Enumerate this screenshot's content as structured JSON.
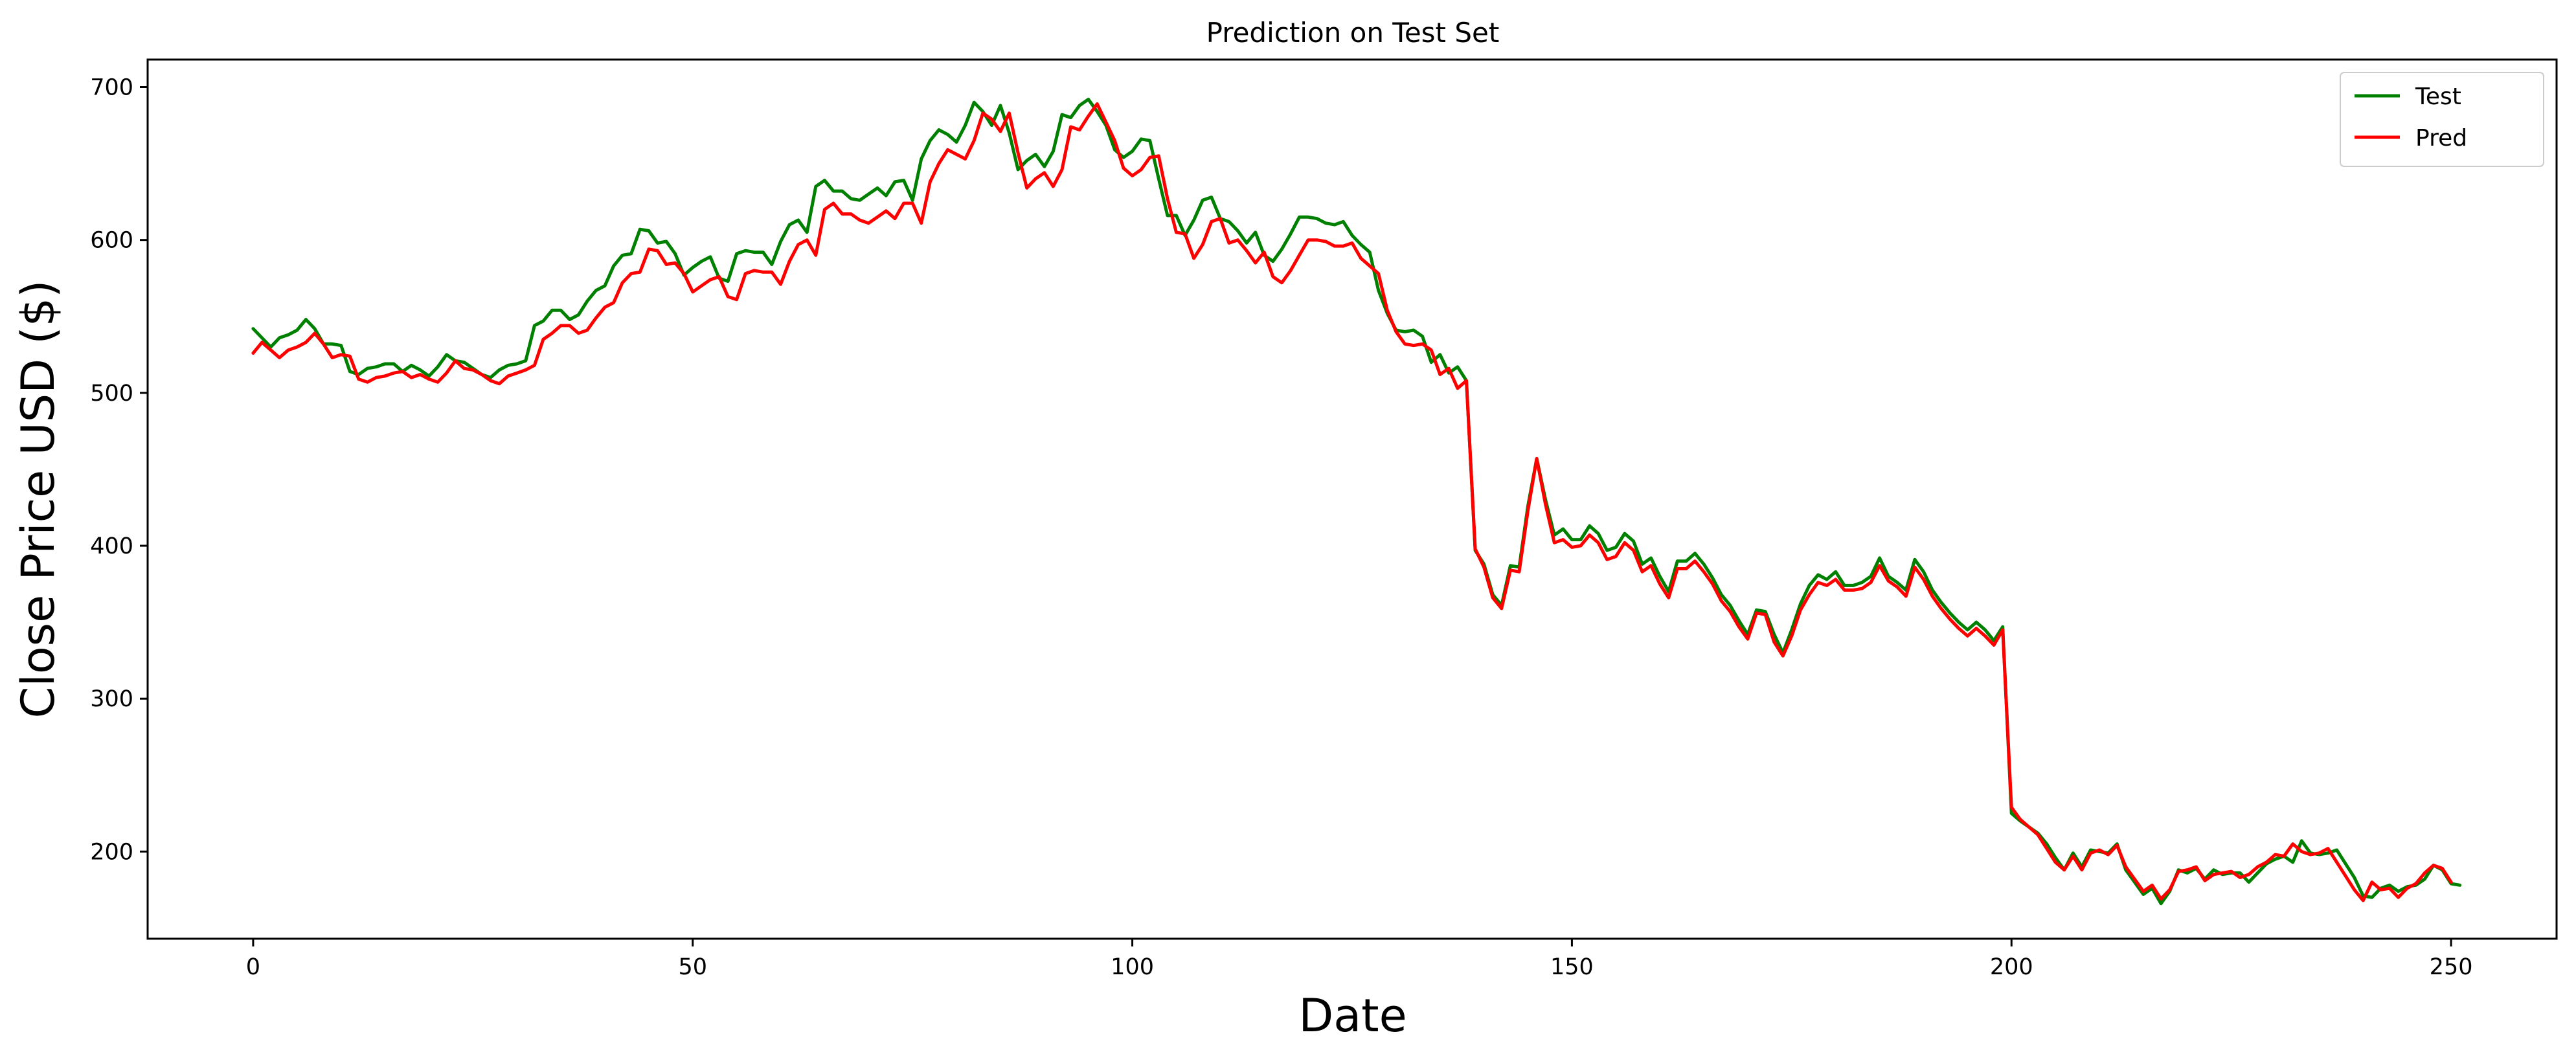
{
  "chart_data": {
    "type": "line",
    "title": "Prediction on Test Set",
    "xlabel": "Date",
    "ylabel": "Close Price USD ($)",
    "xlim": [
      -12,
      262
    ],
    "ylim": [
      143,
      718
    ],
    "xticks": [
      0,
      50,
      100,
      150,
      200,
      250
    ],
    "yticks": [
      200,
      300,
      400,
      500,
      600,
      700
    ],
    "grid": false,
    "legend_position": "top-right",
    "series": [
      {
        "name": "Test",
        "color": "#008000",
        "values": [
          542,
          536,
          530,
          536,
          538,
          541,
          548,
          542,
          532,
          532,
          531,
          514,
          512,
          516,
          517,
          519,
          519,
          514,
          518,
          515,
          511,
          517,
          525,
          521,
          520,
          516,
          512,
          510,
          515,
          518,
          519,
          521,
          544,
          547,
          554,
          554,
          548,
          551,
          560,
          567,
          570,
          583,
          590,
          591,
          607,
          606,
          598,
          599,
          591,
          577,
          582,
          586,
          589,
          575,
          573,
          591,
          593,
          592,
          592,
          584,
          599,
          610,
          613,
          605,
          635,
          639,
          632,
          632,
          627,
          626,
          630,
          634,
          629,
          638,
          639,
          626,
          653,
          665,
          672,
          669,
          664,
          675,
          690,
          684,
          675,
          688,
          670,
          646,
          652,
          656,
          648,
          658,
          682,
          680,
          688,
          692,
          684,
          675,
          659,
          654,
          658,
          666,
          665,
          640,
          616,
          616,
          603,
          613,
          626,
          628,
          614,
          612,
          606,
          598,
          605,
          590,
          586,
          594,
          604,
          615,
          615,
          614,
          611,
          610,
          612,
          603,
          597,
          592,
          567,
          552,
          541,
          540,
          541,
          537,
          520,
          525,
          513,
          517,
          508,
          397,
          388,
          368,
          361,
          387,
          386,
          426,
          457,
          430,
          407,
          411,
          404,
          404,
          413,
          408,
          397,
          399,
          408,
          403,
          388,
          392,
          380,
          370,
          390,
          390,
          395,
          388,
          379,
          368,
          361,
          351,
          342,
          358,
          357,
          342,
          330,
          345,
          362,
          374,
          381,
          378,
          383,
          374,
          374,
          376,
          380,
          392,
          380,
          376,
          371,
          391,
          383,
          371,
          363,
          356,
          350,
          345,
          350,
          345,
          338,
          347,
          225,
          220,
          216,
          212,
          205,
          196,
          188,
          199,
          190,
          201,
          200,
          199,
          205,
          188,
          180,
          172,
          176,
          166,
          174,
          188,
          186,
          189,
          182,
          188,
          185,
          186,
          186,
          180,
          186,
          192,
          195,
          197,
          193,
          207,
          199,
          198,
          199,
          201,
          192,
          183,
          171,
          170,
          176,
          178,
          174,
          177,
          178,
          182,
          191,
          188,
          179,
          178
        ]
      },
      {
        "name": "Pred",
        "color": "#ff0000",
        "values": [
          526,
          533,
          528,
          523,
          528,
          530,
          533,
          539,
          532,
          523,
          525,
          524,
          509,
          507,
          510,
          511,
          513,
          514,
          510,
          512,
          509,
          507,
          513,
          521,
          516,
          515,
          512,
          508,
          506,
          511,
          513,
          515,
          518,
          535,
          539,
          544,
          544,
          539,
          541,
          549,
          556,
          559,
          572,
          578,
          579,
          594,
          593,
          584,
          585,
          578,
          566,
          570,
          574,
          576,
          563,
          561,
          578,
          580,
          579,
          579,
          571,
          586,
          597,
          600,
          590,
          620,
          624,
          617,
          617,
          613,
          611,
          615,
          619,
          614,
          624,
          624,
          611,
          638,
          650,
          659,
          656,
          653,
          665,
          683,
          679,
          671,
          683,
          657,
          634,
          640,
          644,
          635,
          646,
          674,
          672,
          681,
          689,
          677,
          665,
          647,
          642,
          646,
          654,
          655,
          627,
          605,
          604,
          588,
          597,
          612,
          614,
          598,
          600,
          593,
          585,
          592,
          576,
          572,
          580,
          590,
          600,
          600,
          599,
          596,
          596,
          598,
          588,
          583,
          578,
          554,
          540,
          532,
          531,
          532,
          528,
          512,
          516,
          503,
          508,
          398,
          386,
          366,
          359,
          384,
          383,
          423,
          457,
          427,
          402,
          404,
          399,
          400,
          407,
          402,
          391,
          393,
          402,
          397,
          383,
          387,
          375,
          366,
          385,
          385,
          390,
          383,
          375,
          364,
          357,
          347,
          339,
          356,
          355,
          337,
          328,
          341,
          358,
          368,
          376,
          374,
          378,
          371,
          371,
          372,
          376,
          387,
          377,
          373,
          367,
          386,
          378,
          367,
          359,
          352,
          346,
          341,
          346,
          341,
          335,
          345,
          229,
          221,
          216,
          211,
          202,
          193,
          188,
          197,
          188,
          199,
          201,
          198,
          204,
          190,
          182,
          174,
          178,
          169,
          175,
          187,
          188,
          190,
          181,
          185,
          186,
          187,
          183,
          185,
          190,
          193,
          198,
          197,
          205,
          200,
          198,
          199,
          202,
          193,
          184,
          175,
          168,
          180,
          175,
          176,
          170,
          176,
          179,
          186,
          191,
          189,
          180
        ]
      }
    ]
  }
}
